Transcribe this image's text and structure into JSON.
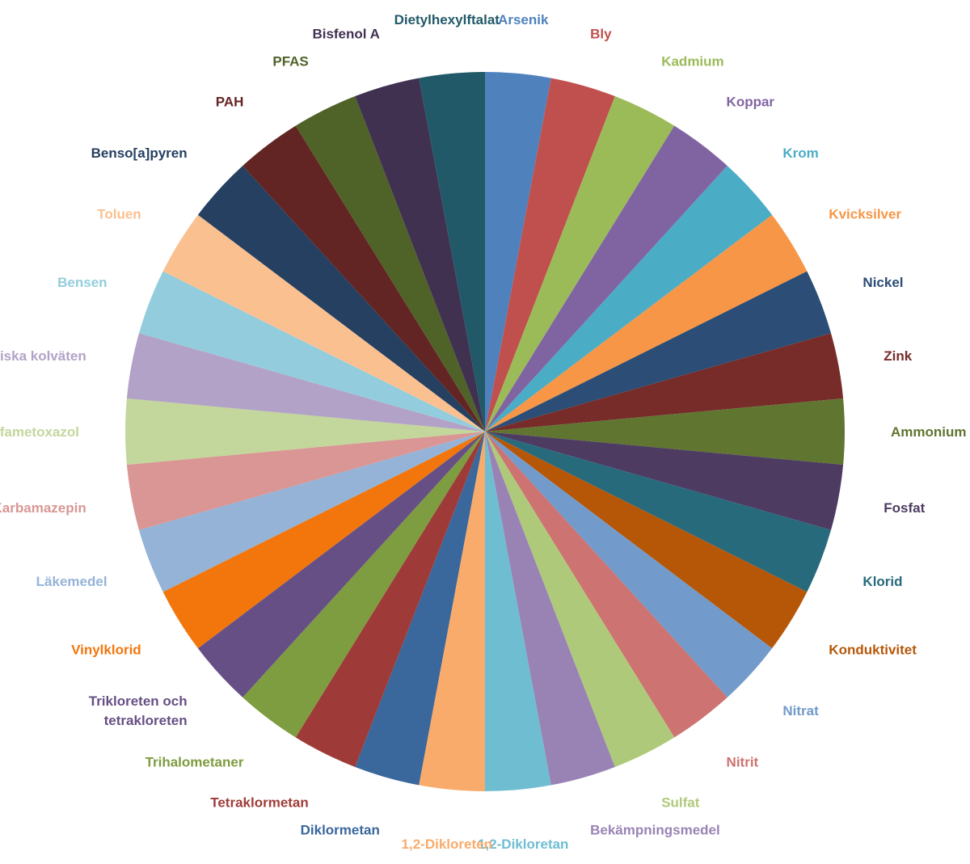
{
  "chart_data": {
    "type": "pie",
    "title": "",
    "start": "top",
    "direction": "clockwise",
    "slices": [
      {
        "label": "Arsenik",
        "value": 1,
        "color": "#4F81BD"
      },
      {
        "label": "Bly",
        "value": 1,
        "color": "#C0504D"
      },
      {
        "label": "Kadmium",
        "value": 1,
        "color": "#9BBB59"
      },
      {
        "label": "Koppar",
        "value": 1,
        "color": "#8064A2"
      },
      {
        "label": "Krom",
        "value": 1,
        "color": "#4BACC6"
      },
      {
        "label": "Kvicksilver",
        "value": 1,
        "color": "#F79646"
      },
      {
        "label": "Nickel",
        "value": 1,
        "color": "#2C4D75"
      },
      {
        "label": "Zink",
        "value": 1,
        "color": "#772C2A"
      },
      {
        "label": "Ammonium",
        "value": 1,
        "color": "#5F7530"
      },
      {
        "label": "Fosfat",
        "value": 1,
        "color": "#4D3B62"
      },
      {
        "label": "Klorid",
        "value": 1,
        "color": "#276A7C"
      },
      {
        "label": "Konduktivitet",
        "value": 1,
        "color": "#B65708"
      },
      {
        "label": "Nitrat",
        "value": 1,
        "color": "#729ACA"
      },
      {
        "label": "Nitrit",
        "value": 1,
        "color": "#CD7371"
      },
      {
        "label": "Sulfat",
        "value": 1,
        "color": "#AFC97A"
      },
      {
        "label": "Bekämpningsmedel",
        "value": 1,
        "color": "#9983B5"
      },
      {
        "label": "1,2-Dikloretan",
        "value": 1,
        "color": "#6FBDD1"
      },
      {
        "label": "1,2-Dikloreten",
        "value": 1,
        "color": "#F9AB6B"
      },
      {
        "label": "Diklormetan",
        "value": 1,
        "color": "#3A679C"
      },
      {
        "label": "Tetraklormetan",
        "value": 1,
        "color": "#9E3B38"
      },
      {
        "label": "Trihalometaner",
        "value": 1,
        "color": "#7E9C40"
      },
      {
        "label": "Trikloreten och tetrakloreten",
        "value": 1,
        "color": "#664F85"
      },
      {
        "label": "Vinylklorid",
        "value": 1,
        "color": "#F2760B"
      },
      {
        "label": "Läkemedel",
        "value": 1,
        "color": "#95B3D7"
      },
      {
        "label": "Karbamazepin",
        "value": 1,
        "color": "#D99694"
      },
      {
        "label": "Sulfametoxazol",
        "value": 1,
        "color": "#C3D69B"
      },
      {
        "label": "Alifatiska kolväten",
        "value": 1,
        "color": "#B2A2C7"
      },
      {
        "label": "Bensen",
        "value": 1,
        "color": "#93CDDD"
      },
      {
        "label": "Toluen",
        "value": 1,
        "color": "#FAC090"
      },
      {
        "label": "Benso[a]pyren",
        "value": 1,
        "color": "#254061"
      },
      {
        "label": "PAH",
        "value": 1,
        "color": "#632523"
      },
      {
        "label": "PFAS",
        "value": 1,
        "color": "#4F6228"
      },
      {
        "label": "Bisfenol A",
        "value": 1,
        "color": "#403151"
      },
      {
        "label": "Dietylhexylftalat",
        "value": 1,
        "color": "#215968"
      }
    ]
  }
}
